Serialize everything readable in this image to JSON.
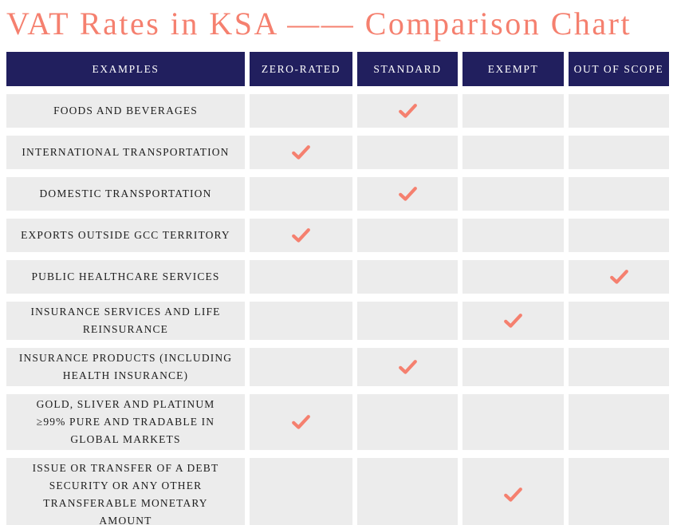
{
  "title": "VAT Rates in KSA —— Comparison Chart",
  "colors": {
    "accent": "#F5806F",
    "header_bg": "#211F5E",
    "header_text": "#FFFFFF",
    "row_bg": "#ECECEC",
    "row_text": "#1D1D1D",
    "page_bg": "#FFFFFF"
  },
  "icons": {
    "check": "✔"
  },
  "chart_data": {
    "type": "table",
    "title": "VAT Rates in KSA —— Comparison Chart",
    "columns": [
      "EXAMPLES",
      "ZERO-RATED",
      "STANDARD",
      "EXEMPT",
      "OUT OF SCOPE"
    ],
    "rows": [
      {
        "label": "FOODS AND BEVERAGES",
        "checked_column": "STANDARD"
      },
      {
        "label": "INTERNATIONAL TRANSPORTATION",
        "checked_column": "ZERO-RATED"
      },
      {
        "label": "DOMESTIC TRANSPORTATION",
        "checked_column": "STANDARD"
      },
      {
        "label": "EXPORTS OUTSIDE GCC TERRITORY",
        "checked_column": "ZERO-RATED"
      },
      {
        "label": "PUBLIC HEALTHCARE SERVICES",
        "checked_column": "OUT OF SCOPE"
      },
      {
        "label": "INSURANCE SERVICES AND LIFE\nREINSURANCE",
        "checked_column": "EXEMPT"
      },
      {
        "label": "INSURANCE PRODUCTS (INCLUDING\nHEALTH INSURANCE)",
        "checked_column": "STANDARD"
      },
      {
        "label": "GOLD, SLIVER AND PLATINUM\n≥99% PURE AND TRADABLE IN\nGLOBAL MARKETS",
        "checked_column": "ZERO-RATED"
      },
      {
        "label": "ISSUE OR TRANSFER OF A DEBT\nSECURITY OR ANY OTHER\nTRANSFERABLE MONETARY\nAMOUNT",
        "checked_column": "EXEMPT"
      }
    ]
  }
}
